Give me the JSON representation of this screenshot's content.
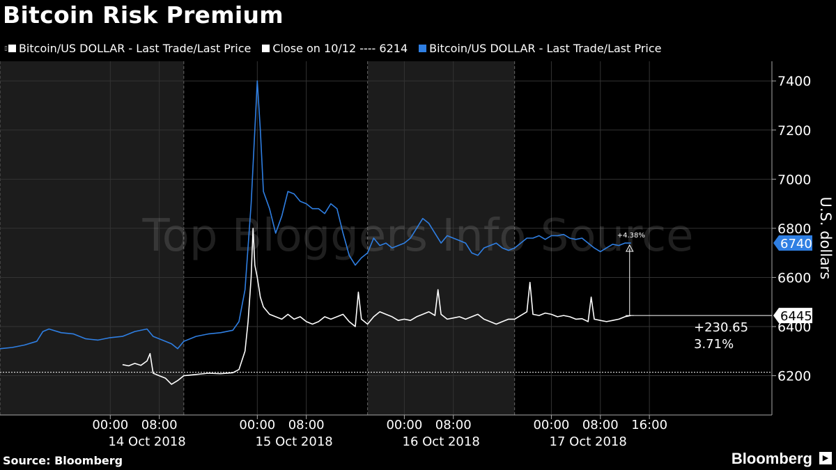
{
  "title": "Bitcoin Risk Premium",
  "legend": [
    {
      "label": "Bitcoin/US DOLLAR - Last Trade/Last Price",
      "color": "#ffffff",
      "icon": "small-box-icon"
    },
    {
      "label": "Close on 10/12 ---- 6214",
      "color": "#ffffff"
    },
    {
      "label": "Bitcoin/US DOLLAR - Last Trade/Last Price",
      "color": "#2f7fe3"
    }
  ],
  "source": "Source: Bloomberg",
  "brand": "Bloomberg",
  "watermark": "Top Bloggers Info Source",
  "chart_data": {
    "type": "line",
    "ylabel": "U.S. dollars",
    "ylim": [
      6040,
      7480
    ],
    "yticks": [
      "6200",
      "6400",
      "6600",
      "6800",
      "7000",
      "7200",
      "7400"
    ],
    "x_range_hours": [
      -18,
      108
    ],
    "time_ticks": [
      {
        "h": 0,
        "label": "00:00"
      },
      {
        "h": 8,
        "label": "08:00"
      },
      {
        "h": 24,
        "label": "00:00"
      },
      {
        "h": 32,
        "label": "08:00"
      },
      {
        "h": 48,
        "label": "00:00"
      },
      {
        "h": 56,
        "label": "08:00"
      },
      {
        "h": 72,
        "label": "00:00"
      },
      {
        "h": 80,
        "label": "08:00"
      },
      {
        "h": 88,
        "label": "16:00"
      }
    ],
    "date_labels": [
      {
        "h": 6,
        "label": "14 Oct 2018"
      },
      {
        "h": 30,
        "label": "15 Oct 2018"
      },
      {
        "h": 54,
        "label": "16 Oct 2018"
      },
      {
        "h": 78,
        "label": "17 Oct 2018"
      }
    ],
    "reference_close": 6214,
    "series": [
      {
        "name": "Bitcoin/US DOLLAR - Last Trade/Last Price",
        "color": "#ffffff",
        "points": [
          [
            2,
            6245
          ],
          [
            3,
            6240
          ],
          [
            4,
            6250
          ],
          [
            5,
            6242
          ],
          [
            6,
            6260
          ],
          [
            6.5,
            6290
          ],
          [
            7,
            6210
          ],
          [
            8,
            6200
          ],
          [
            9,
            6190
          ],
          [
            10,
            6165
          ],
          [
            11,
            6180
          ],
          [
            12,
            6200
          ],
          [
            14,
            6205
          ],
          [
            16,
            6210
          ],
          [
            18,
            6208
          ],
          [
            20,
            6212
          ],
          [
            21,
            6225
          ],
          [
            22,
            6300
          ],
          [
            22.5,
            6420
          ],
          [
            23,
            6600
          ],
          [
            23.3,
            6800
          ],
          [
            23.6,
            6650
          ],
          [
            24,
            6600
          ],
          [
            24.5,
            6520
          ],
          [
            25,
            6480
          ],
          [
            26,
            6450
          ],
          [
            27,
            6440
          ],
          [
            28,
            6430
          ],
          [
            29,
            6450
          ],
          [
            30,
            6430
          ],
          [
            31,
            6440
          ],
          [
            32,
            6420
          ],
          [
            33,
            6410
          ],
          [
            34,
            6420
          ],
          [
            35,
            6440
          ],
          [
            36,
            6430
          ],
          [
            37,
            6440
          ],
          [
            38,
            6450
          ],
          [
            39,
            6420
          ],
          [
            40,
            6400
          ],
          [
            40.5,
            6540
          ],
          [
            41,
            6430
          ],
          [
            42,
            6410
          ],
          [
            43,
            6440
          ],
          [
            44,
            6460
          ],
          [
            45,
            6450
          ],
          [
            46,
            6440
          ],
          [
            47,
            6425
          ],
          [
            48,
            6430
          ],
          [
            49,
            6425
          ],
          [
            50,
            6440
          ],
          [
            51,
            6450
          ],
          [
            52,
            6460
          ],
          [
            53,
            6445
          ],
          [
            53.5,
            6550
          ],
          [
            54,
            6450
          ],
          [
            55,
            6430
          ],
          [
            56,
            6435
          ],
          [
            57,
            6440
          ],
          [
            58,
            6430
          ],
          [
            59,
            6440
          ],
          [
            60,
            6450
          ],
          [
            61,
            6430
          ],
          [
            62,
            6420
          ],
          [
            63,
            6410
          ],
          [
            64,
            6420
          ],
          [
            65,
            6430
          ],
          [
            66,
            6430
          ],
          [
            67,
            6445
          ],
          [
            68,
            6460
          ],
          [
            68.5,
            6580
          ],
          [
            69,
            6450
          ],
          [
            70,
            6445
          ],
          [
            71,
            6455
          ],
          [
            72,
            6450
          ],
          [
            73,
            6440
          ],
          [
            74,
            6445
          ],
          [
            75,
            6440
          ],
          [
            76,
            6430
          ],
          [
            77,
            6432
          ],
          [
            78,
            6420
          ],
          [
            78.5,
            6520
          ],
          [
            79,
            6430
          ],
          [
            80,
            6425
          ],
          [
            81,
            6420
          ],
          [
            82,
            6425
          ],
          [
            83,
            6430
          ],
          [
            84,
            6440
          ],
          [
            85,
            6445
          ]
        ]
      },
      {
        "name": "Bitcoin/US DOLLAR - Last Trade/Last Price",
        "color": "#2f7fe3",
        "points": [
          [
            -18,
            6310
          ],
          [
            -16,
            6315
          ],
          [
            -14,
            6325
          ],
          [
            -12,
            6340
          ],
          [
            -11,
            6380
          ],
          [
            -10,
            6390
          ],
          [
            -8,
            6375
          ],
          [
            -6,
            6370
          ],
          [
            -4,
            6350
          ],
          [
            -2,
            6345
          ],
          [
            0,
            6355
          ],
          [
            2,
            6360
          ],
          [
            4,
            6380
          ],
          [
            6,
            6390
          ],
          [
            7,
            6360
          ],
          [
            8,
            6350
          ],
          [
            10,
            6330
          ],
          [
            11,
            6310
          ],
          [
            12,
            6340
          ],
          [
            14,
            6360
          ],
          [
            16,
            6370
          ],
          [
            18,
            6375
          ],
          [
            20,
            6385
          ],
          [
            21,
            6420
          ],
          [
            22,
            6550
          ],
          [
            23,
            6900
          ],
          [
            23.5,
            7150
          ],
          [
            24,
            7400
          ],
          [
            24.5,
            7200
          ],
          [
            25,
            6950
          ],
          [
            26,
            6880
          ],
          [
            27,
            6780
          ],
          [
            28,
            6850
          ],
          [
            29,
            6950
          ],
          [
            30,
            6940
          ],
          [
            31,
            6910
          ],
          [
            32,
            6900
          ],
          [
            33,
            6880
          ],
          [
            34,
            6880
          ],
          [
            35,
            6860
          ],
          [
            36,
            6900
          ],
          [
            37,
            6880
          ],
          [
            38,
            6780
          ],
          [
            39,
            6690
          ],
          [
            40,
            6650
          ],
          [
            41,
            6680
          ],
          [
            42,
            6700
          ],
          [
            43,
            6760
          ],
          [
            44,
            6730
          ],
          [
            45,
            6740
          ],
          [
            46,
            6720
          ],
          [
            47,
            6730
          ],
          [
            48,
            6740
          ],
          [
            49,
            6760
          ],
          [
            50,
            6800
          ],
          [
            51,
            6840
          ],
          [
            52,
            6820
          ],
          [
            53,
            6780
          ],
          [
            54,
            6740
          ],
          [
            55,
            6770
          ],
          [
            56,
            6760
          ],
          [
            57,
            6750
          ],
          [
            58,
            6740
          ],
          [
            59,
            6700
          ],
          [
            60,
            6690
          ],
          [
            61,
            6720
          ],
          [
            62,
            6730
          ],
          [
            63,
            6740
          ],
          [
            64,
            6720
          ],
          [
            65,
            6710
          ],
          [
            66,
            6720
          ],
          [
            67,
            6740
          ],
          [
            68,
            6760
          ],
          [
            69,
            6760
          ],
          [
            70,
            6770
          ],
          [
            71,
            6755
          ],
          [
            72,
            6770
          ],
          [
            73,
            6770
          ],
          [
            74,
            6775
          ],
          [
            75,
            6760
          ],
          [
            76,
            6755
          ],
          [
            77,
            6760
          ],
          [
            78,
            6740
          ],
          [
            79,
            6720
          ],
          [
            80,
            6705
          ],
          [
            81,
            6720
          ],
          [
            82,
            6735
          ],
          [
            83,
            6730
          ],
          [
            84,
            6740
          ],
          [
            85,
            6740
          ]
        ]
      }
    ],
    "last_values": {
      "blue": "6740",
      "white": "6445"
    },
    "change_pct_label": "+4.38%",
    "change_abs_label": "+230.65",
    "change_rel_label": "3.71%",
    "shaded_bands_hours": [
      [
        -18,
        12
      ],
      [
        42,
        66
      ]
    ]
  }
}
